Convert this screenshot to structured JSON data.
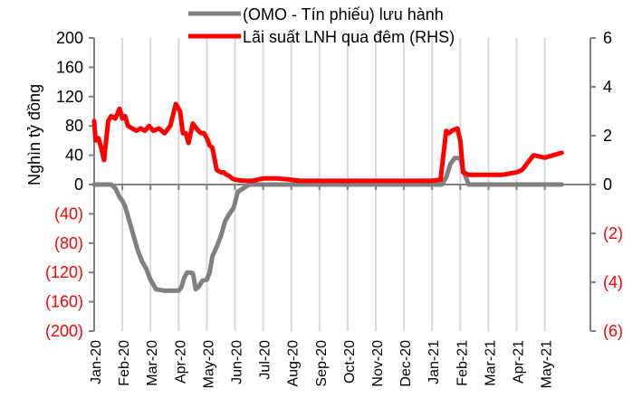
{
  "chart_data": {
    "type": "line",
    "title": "",
    "legend": {
      "position": "top",
      "entries": [
        {
          "label": "(OMO - Tín phiếu) lưu hành",
          "color": "#808080",
          "axis": "left"
        },
        {
          "label": "Lãi suất LNH qua đêm (RHS)",
          "color": "#ff0000",
          "axis": "right"
        }
      ]
    },
    "ylabel": "Nghìn tỷ đồng",
    "xlabel": "",
    "ylim": [
      -200,
      200
    ],
    "y2lim": [
      -6,
      6
    ],
    "grid": {
      "vertical": true,
      "horizontal": false
    },
    "left_ticks": [
      {
        "label": "200",
        "value": 200,
        "color": "#000000"
      },
      {
        "label": "160",
        "value": 160,
        "color": "#000000"
      },
      {
        "label": "120",
        "value": 120,
        "color": "#000000"
      },
      {
        "label": "80",
        "value": 80,
        "color": "#000000"
      },
      {
        "label": "40",
        "value": 40,
        "color": "#000000"
      },
      {
        "label": "0",
        "value": 0,
        "color": "#000000"
      },
      {
        "label": "(40)",
        "value": -40,
        "color": "#ff0000"
      },
      {
        "label": "(80)",
        "value": -80,
        "color": "#ff0000"
      },
      {
        "label": "(120)",
        "value": -120,
        "color": "#ff0000"
      },
      {
        "label": "(160)",
        "value": -160,
        "color": "#ff0000"
      },
      {
        "label": "(200)",
        "value": -200,
        "color": "#ff0000"
      }
    ],
    "right_ticks": [
      {
        "label": "6",
        "value": 6,
        "color": "#000000"
      },
      {
        "label": "4",
        "value": 4,
        "color": "#000000"
      },
      {
        "label": "2",
        "value": 2,
        "color": "#000000"
      },
      {
        "label": "0",
        "value": 0,
        "color": "#000000"
      },
      {
        "label": "(2)",
        "value": -2,
        "color": "#ff0000"
      },
      {
        "label": "(4)",
        "value": -4,
        "color": "#ff0000"
      },
      {
        "label": "(6)",
        "value": -6,
        "color": "#ff0000"
      }
    ],
    "categories": [
      "Jan-20",
      "Feb-20",
      "Mar-20",
      "Apr-20",
      "May-20",
      "Jun-20",
      "Jul-20",
      "Aug-20",
      "Sep-20",
      "Oct-20",
      "Nov-20",
      "Dec-20",
      "Jan-21",
      "Feb-21",
      "Mar-21",
      "Apr-21",
      "May-21"
    ],
    "series": [
      {
        "name": "(OMO - Tín phiếu) lưu hành",
        "axis": "left",
        "color": "#808080",
        "x": [
          0,
          0.3,
          0.45,
          0.6,
          0.75,
          0.9,
          1.0,
          1.1,
          1.25,
          1.4,
          1.55,
          1.7,
          1.85,
          2.0,
          2.2,
          2.5,
          2.8,
          3.0,
          3.1,
          3.2,
          3.3,
          3.4,
          3.5,
          3.55,
          3.6,
          3.7,
          3.85,
          4.0,
          4.1,
          4.2,
          4.35,
          4.5,
          4.65,
          4.8,
          4.95,
          5.0,
          5.1,
          5.5,
          6,
          7,
          8,
          9,
          10,
          11,
          12,
          12.2,
          12.35,
          12.5,
          12.65,
          12.8,
          12.9,
          13.0,
          13.1,
          13.3,
          14,
          15,
          16,
          16.6
        ],
        "values": [
          0,
          0,
          0,
          0,
          -5,
          -17,
          -22,
          -30,
          -50,
          -70,
          -90,
          -105,
          -115,
          -130,
          -143,
          -145,
          -145,
          -145,
          -140,
          -127,
          -120,
          -120,
          -121,
          -130,
          -143,
          -140,
          -131,
          -130,
          -120,
          -98,
          -85,
          -70,
          -50,
          -40,
          -32,
          -25,
          -10,
          0,
          0,
          0,
          0,
          0,
          0,
          0,
          0,
          0,
          0,
          10,
          28,
          36,
          36,
          36,
          20,
          0,
          0,
          0,
          0,
          0
        ]
      },
      {
        "name": "Lãi suất LNH qua đêm (RHS)",
        "axis": "right",
        "color": "#ff0000",
        "x": [
          0,
          0.05,
          0.15,
          0.25,
          0.35,
          0.5,
          0.6,
          0.75,
          0.9,
          1.0,
          1.1,
          1.2,
          1.35,
          1.5,
          1.65,
          1.8,
          1.95,
          2.1,
          2.3,
          2.5,
          2.7,
          2.9,
          3.05,
          3.15,
          3.25,
          3.35,
          3.5,
          3.7,
          3.8,
          3.9,
          4.0,
          4.1,
          4.2,
          4.35,
          4.5,
          4.6,
          4.7,
          4.8,
          4.9,
          5.0,
          5.3,
          5.6,
          6.0,
          6.5,
          7.0,
          7.3,
          7.6,
          8,
          9,
          10,
          11,
          12,
          12.3,
          12.5,
          12.6,
          12.7,
          12.9,
          13.0,
          13.1,
          13.3,
          14,
          14.5,
          15,
          15.2,
          15.4,
          15.6,
          16,
          16.6
        ],
        "values": [
          2.6,
          1.8,
          1.9,
          1.5,
          1.0,
          2.6,
          2.8,
          2.7,
          3.1,
          2.7,
          2.8,
          2.4,
          2.3,
          2.2,
          2.3,
          2.2,
          2.4,
          2.2,
          2.3,
          2.1,
          2.4,
          3.3,
          3.0,
          2.1,
          2.1,
          1.7,
          2.5,
          2.2,
          2.1,
          2.1,
          1.9,
          1.6,
          1.5,
          0.6,
          0.5,
          0.5,
          0.4,
          0.35,
          0.25,
          0.2,
          0.15,
          0.15,
          0.25,
          0.25,
          0.2,
          0.15,
          0.15,
          0.15,
          0.15,
          0.15,
          0.15,
          0.15,
          0.2,
          2.2,
          2.1,
          2.2,
          2.3,
          1.8,
          0.5,
          0.4,
          0.4,
          0.4,
          0.5,
          0.6,
          0.9,
          1.2,
          1.1,
          1.3
        ]
      }
    ]
  }
}
